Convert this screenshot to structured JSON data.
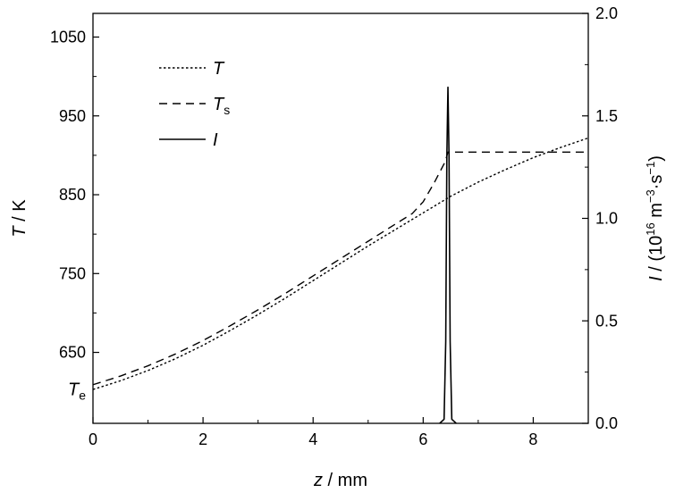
{
  "chart_data": {
    "type": "line",
    "xlabel_var": "z",
    "xlabel_unit": " / mm",
    "ylabel_left_var": "T",
    "ylabel_left_unit": " / K",
    "ylabel_right_var": "I",
    "ylabel_right_unit": " / (10",
    "ylabel_right_exp1": "16",
    "ylabel_right_mid": " m",
    "ylabel_right_exp2": "−3",
    "ylabel_right_mid2": "·s",
    "ylabel_right_exp3": "−1",
    "ylabel_right_end": ")",
    "xlim": [
      0,
      9
    ],
    "ylim_left": [
      560,
      1080
    ],
    "ylim_right": [
      0,
      2.0
    ],
    "x_ticks": [
      0,
      2,
      4,
      6,
      8
    ],
    "x_tick_labels": [
      "0",
      "2",
      "4",
      "6",
      "8"
    ],
    "y_left_ticks": [
      650,
      750,
      850,
      950,
      1050
    ],
    "y_left_tick_labels": [
      "650",
      "750",
      "850",
      "950",
      "1050"
    ],
    "y_right_ticks": [
      0,
      0.5,
      1.0,
      1.5,
      2.0
    ],
    "y_right_tick_labels": [
      "0.0",
      "0.5",
      "1.0",
      "1.5",
      "2.0"
    ],
    "te_label_main": "T",
    "te_label_sub": "e",
    "te_value": 605,
    "grid": false,
    "legend_position": "top-left",
    "series": [
      {
        "name": "T",
        "name_sub": "",
        "axis": "left",
        "style": "dotted",
        "x": [
          0,
          0.5,
          1.0,
          1.5,
          2.0,
          2.5,
          3.0,
          3.5,
          4.0,
          4.5,
          5.0,
          5.5,
          6.0,
          6.5,
          7.0,
          7.5,
          8.0,
          8.5,
          9.0
        ],
        "y": [
          603,
          614,
          627,
          642,
          659,
          678,
          698,
          719,
          741,
          763,
          785,
          806,
          827,
          848,
          866,
          882,
          897,
          910,
          922
        ]
      },
      {
        "name": "T",
        "name_sub": "s",
        "axis": "left",
        "style": "dashed",
        "x": [
          0,
          0.5,
          1.0,
          1.5,
          2.0,
          2.5,
          3.0,
          3.5,
          4.0,
          4.5,
          5.0,
          5.5,
          5.8,
          6.0,
          6.2,
          6.4,
          6.45,
          7.0,
          8.0,
          9.0
        ],
        "y": [
          609,
          620,
          633,
          648,
          665,
          684,
          704,
          725,
          747,
          769,
          791,
          813,
          826,
          841,
          865,
          892,
          904,
          904,
          904,
          904
        ]
      },
      {
        "name": "I",
        "name_sub": "",
        "axis": "right",
        "style": "solid",
        "x": [
          6.3,
          6.38,
          6.41,
          6.43,
          6.45,
          6.47,
          6.49,
          6.52,
          6.6
        ],
        "y": [
          0,
          0.02,
          0.4,
          1.3,
          1.64,
          1.3,
          0.4,
          0.02,
          0
        ]
      }
    ]
  }
}
